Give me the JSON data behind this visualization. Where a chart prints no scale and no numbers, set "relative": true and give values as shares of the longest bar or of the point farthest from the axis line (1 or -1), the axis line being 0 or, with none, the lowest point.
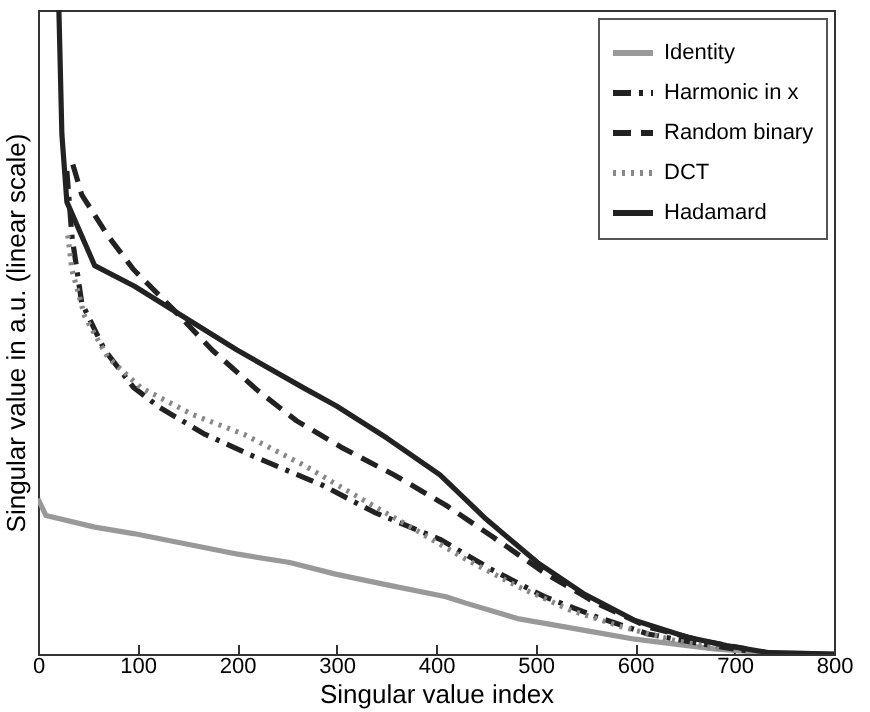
{
  "chart_data": {
    "type": "line",
    "xlabel": "Singular value index",
    "ylabel": "Singular value in a.u. (linear scale)",
    "relative": true,
    "xlim": [
      0,
      800
    ],
    "xticks": [
      0,
      100,
      200,
      300,
      400,
      500,
      600,
      700,
      800
    ],
    "grid": false,
    "legend": "top right",
    "marker": "none",
    "series": [
      {
        "name": "Identity",
        "color": "#999999",
        "line_style": "solid",
        "x": [
          0,
          8,
          57,
          96,
          201,
          253,
          299,
          352,
          410,
          430,
          482,
          548,
          600,
          679,
          731,
          800
        ],
        "values": [
          0.241,
          0.215,
          0.197,
          0.187,
          0.155,
          0.142,
          0.124,
          0.107,
          0.089,
          0.079,
          0.055,
          0.037,
          0.023,
          0.008,
          0.002,
          0
        ]
      },
      {
        "name": "Harmonic in x",
        "color": "#222222",
        "line_style": "dashdot",
        "x": [
          29,
          34,
          44,
          67,
          96,
          122,
          168,
          221,
          286,
          338,
          404,
          456,
          509,
          561,
          613,
          666,
          712
        ],
        "values": [
          0.75,
          0.65,
          0.545,
          0.472,
          0.414,
          0.383,
          0.341,
          0.304,
          0.262,
          0.22,
          0.178,
          0.131,
          0.089,
          0.058,
          0.031,
          0.016,
          0.005
        ]
      },
      {
        "name": "Random binary",
        "color": "#222222",
        "line_style": "dashed",
        "x": [
          35,
          44,
          70,
          96,
          136,
          175,
          221,
          260,
          306,
          358,
          410,
          456,
          509,
          561,
          613,
          666,
          712
        ],
        "values": [
          0.76,
          0.713,
          0.65,
          0.597,
          0.535,
          0.472,
          0.409,
          0.362,
          0.32,
          0.278,
          0.231,
          0.183,
          0.126,
          0.079,
          0.042,
          0.021,
          0.008
        ]
      },
      {
        "name": "DCT",
        "color": "#888888",
        "line_style": "dotted",
        "x": [
          30,
          34,
          47,
          70,
          103,
          155,
          207,
          266,
          325,
          378,
          430,
          482,
          535,
          587,
          640,
          686
        ],
        "values": [
          0.65,
          0.597,
          0.524,
          0.461,
          0.414,
          0.372,
          0.341,
          0.294,
          0.241,
          0.194,
          0.147,
          0.105,
          0.068,
          0.042,
          0.021,
          0.008
        ]
      },
      {
        "name": "Hadamard",
        "color": "#222222",
        "line_style": "solid",
        "x": [
          21,
          24,
          29,
          57,
          97,
          200,
          266,
          300,
          351,
          404,
          450,
          502,
          548,
          600,
          653,
          692,
          735,
          800
        ],
        "values": [
          1,
          0.807,
          0.702,
          0.603,
          0.571,
          0.472,
          0.414,
          0.385,
          0.335,
          0.278,
          0.21,
          0.142,
          0.094,
          0.052,
          0.026,
          0.013,
          0.002,
          0
        ]
      }
    ]
  }
}
